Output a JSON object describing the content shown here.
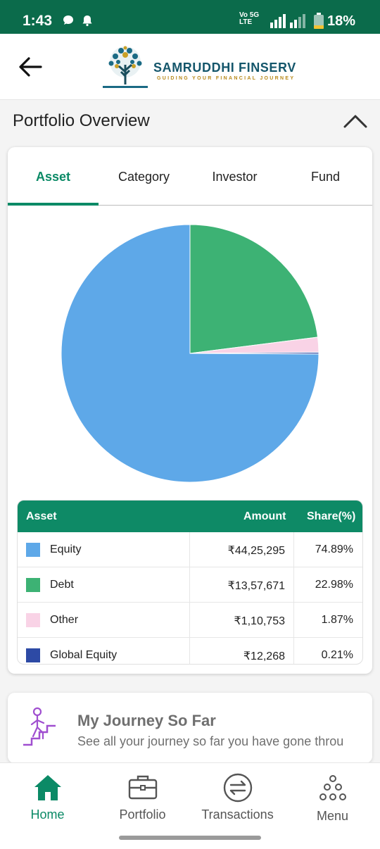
{
  "status_bar": {
    "time": "1:43",
    "network_top": "Vo 5G",
    "network_bottom": "LTE",
    "battery": "18%"
  },
  "header": {
    "brand": "SAMRUDDHI FINSERV",
    "tagline": "GUIDING YOUR FINANCIAL JOURNEY"
  },
  "section": {
    "title": "Portfolio Overview"
  },
  "tabs": [
    {
      "label": "Asset",
      "active": true
    },
    {
      "label": "Category",
      "active": false
    },
    {
      "label": "Investor",
      "active": false
    },
    {
      "label": "Fund",
      "active": false
    }
  ],
  "table": {
    "headers": {
      "asset": "Asset",
      "amount": "Amount",
      "share": "Share(%)"
    },
    "rows": [
      {
        "name": "Equity",
        "amount": "₹44,25,295",
        "share": "74.89%",
        "color": "#5ea8e8"
      },
      {
        "name": "Debt",
        "amount": "₹13,57,671",
        "share": "22.98%",
        "color": "#3db274"
      },
      {
        "name": "Other",
        "amount": "₹1,10,753",
        "share": "1.87%",
        "color": "#f9d3e6"
      },
      {
        "name": "Global Equity",
        "amount": "₹12,268",
        "share": "0.21%",
        "color": "#2d4aa5"
      }
    ]
  },
  "chart_data": {
    "type": "pie",
    "categories": [
      "Equity",
      "Debt",
      "Other",
      "Global Equity"
    ],
    "values": [
      74.89,
      22.98,
      1.87,
      0.21
    ],
    "colors": [
      "#5ea8e8",
      "#3db274",
      "#f9d3e6",
      "#2d4aa5"
    ]
  },
  "journey": {
    "title": "My Journey So Far",
    "subtitle": "See all your journey so far you have gone throu"
  },
  "bottom_nav": [
    {
      "label": "Home",
      "icon": "home-icon",
      "active": true
    },
    {
      "label": "Portfolio",
      "icon": "briefcase-icon",
      "active": false
    },
    {
      "label": "Transactions",
      "icon": "transactions-icon",
      "active": false
    },
    {
      "label": "Menu",
      "icon": "menu-dots-icon",
      "active": false
    }
  ],
  "theme": {
    "primary": "#0b8a66",
    "status_bar": "#0b6b4b",
    "brand": "#14566b"
  }
}
